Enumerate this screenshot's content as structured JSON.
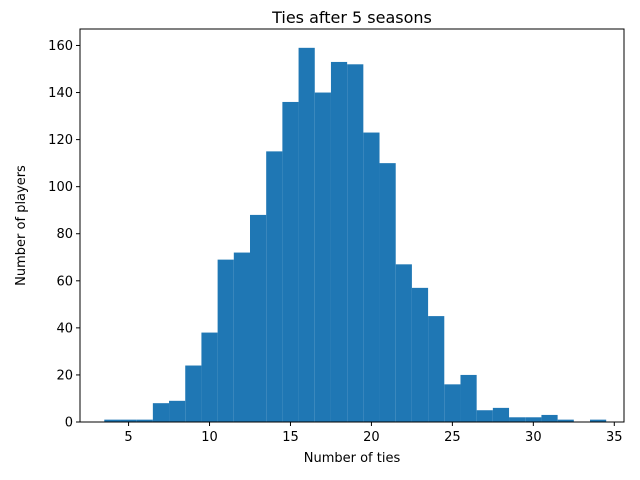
{
  "chart_data": {
    "type": "bar",
    "title": "Ties after 5 seasons",
    "xlabel": "Number of ties",
    "ylabel": "Number of players",
    "xlim": [
      2.0,
      35.6
    ],
    "ylim": [
      0,
      167
    ],
    "xticks": [
      5,
      10,
      15,
      20,
      25,
      30,
      35
    ],
    "yticks": [
      0,
      20,
      40,
      60,
      80,
      100,
      120,
      140,
      160
    ],
    "bin_edges": [
      3.5,
      4.5,
      5.5,
      6.5,
      7.5,
      8.5,
      9.5,
      10.5,
      11.5,
      12.5,
      13.5,
      14.5,
      15.5,
      16.5,
      17.5,
      18.5,
      19.5,
      20.5,
      21.5,
      22.5,
      23.5,
      24.5,
      25.5,
      26.5,
      27.5,
      28.5,
      29.5,
      30.5,
      31.5,
      32.5,
      33.5,
      34.5
    ],
    "values": [
      1,
      1,
      1,
      8,
      9,
      24,
      38,
      69,
      72,
      88,
      115,
      136,
      159,
      140,
      153,
      152,
      123,
      110,
      67,
      57,
      45,
      16,
      20,
      5,
      6,
      2,
      2,
      3,
      1,
      0,
      1
    ],
    "color": "#1f77b4",
    "grid": false,
    "legend": "none"
  }
}
